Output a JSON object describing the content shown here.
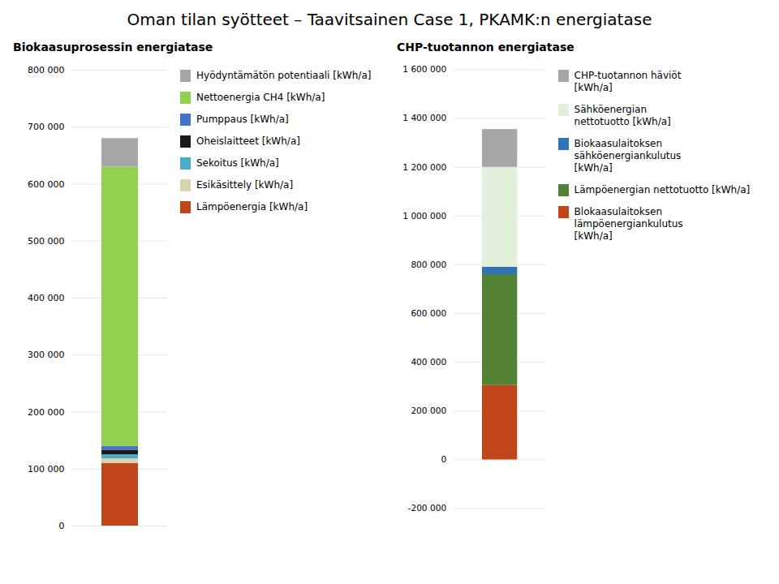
{
  "title": "Oman tilan syötteet – Taavitsainen Case 1, PKAMK:n energiatase",
  "chart_data": [
    {
      "type": "bar",
      "subtitle": "Biokaasuprosessin energiatase",
      "stacked": true,
      "categories": [
        null
      ],
      "series": [
        {
          "name": "Lämpöenergia [kWh/a]",
          "color": "#c0451a",
          "values": [
            110000
          ]
        },
        {
          "name": "Esikäsittely [kWh/a]",
          "color": "#d9d3b0",
          "values": [
            8000
          ]
        },
        {
          "name": "Sekoitus [kWh/a]",
          "color": "#4bacc6",
          "values": [
            7000
          ]
        },
        {
          "name": "Oheislaitteet [kWh/a]",
          "color": "#1a1a1a",
          "values": [
            8000
          ]
        },
        {
          "name": "Pumppaus [kWh/a]",
          "color": "#4472c4",
          "values": [
            7000
          ]
        },
        {
          "name": "Nettoenergia CH4 [kWh/a]",
          "color": "#92d050",
          "values": [
            490000
          ]
        },
        {
          "name": "Hyödyntämätön potentiaali [kWh/a]",
          "color": "#a6a6a6",
          "values": [
            50000
          ]
        }
      ],
      "ylim": [
        0,
        800000
      ],
      "yticks": [
        0,
        {
          "value": 100000,
          "label": "100 000"
        },
        {
          "value": 200000,
          "label": "200 000"
        },
        {
          "value": 300000,
          "label": "300 000"
        },
        {
          "value": 400000,
          "label": "400 000"
        },
        {
          "value": 500000,
          "label": "500 000"
        },
        {
          "value": 600000,
          "label": "600 000"
        },
        {
          "value": 700000,
          "label": "700 000"
        },
        {
          "value": 800000,
          "label": "800 000"
        }
      ],
      "grid": true,
      "legend": "right",
      "tick_labels": "y"
    },
    {
      "type": "bar",
      "subtitle": "CHP-tuotannon energiatase",
      "stacked": true,
      "categories": [
        null
      ],
      "series": [
        {
          "name": "Blokaasulaitoksen lämpöenergiankulutus\n[kWh/a]",
          "color": "#c0451a",
          "values": [
            305000
          ]
        },
        {
          "name": "Lämpöenergian nettotuotto [kWh/a]",
          "color": "#548235",
          "values": [
            455000
          ]
        },
        {
          "name": "Biokaasulaitoksen\nsähköenergiankulutus\n[kWh/a]",
          "color": "#2e75b6",
          "values": [
            30000
          ]
        },
        {
          "name": "Sähköenergian\nnettotuotto [kWh/a]",
          "color": "#e2efda",
          "values": [
            410000
          ]
        },
        {
          "name": "CHP-tuotannon häviöt\n[kWh/a]",
          "color": "#a6a6a6",
          "values": [
            155000
          ]
        }
      ],
      "ylim": [
        -200000,
        1600000
      ],
      "yticks": [
        {
          "value": -200000,
          "label": "-200 000"
        },
        0,
        {
          "value": 200000,
          "label": "200 000"
        },
        {
          "value": 400000,
          "label": "400 000"
        },
        {
          "value": 600000,
          "label": "600 000"
        },
        {
          "value": 800000,
          "label": "800 000"
        },
        {
          "value": 1000000,
          "label": "1 000 000"
        },
        {
          "value": 1200000,
          "label": "1 200 000"
        },
        {
          "value": 1400000,
          "label": "1 400 000"
        },
        {
          "value": 1600000,
          "label": "1 600 000"
        }
      ],
      "grid": true,
      "legend": "right",
      "tick_labels": "y"
    }
  ]
}
